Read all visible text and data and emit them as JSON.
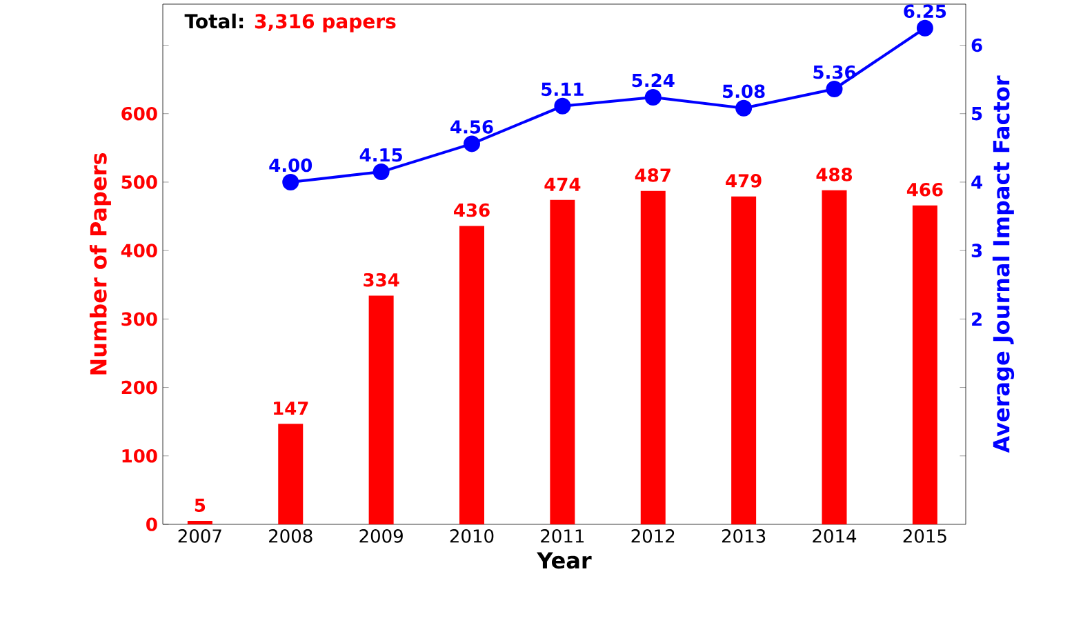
{
  "chart_data": {
    "type": "bar",
    "xlabel": "Year",
    "ylabel": "Number of Papers",
    "y2label": "Average Journal Impact Factor",
    "annotations": [
      "Total:",
      "3,316 papers"
    ],
    "categories": [
      "2007",
      "2008",
      "2009",
      "2010",
      "2011",
      "2012",
      "2013",
      "2014",
      "2015"
    ],
    "series": [
      {
        "color": "#ff0000",
        "values": [
          5,
          147,
          334,
          436,
          474,
          487,
          479,
          488,
          466
        ],
        "value_labels": [
          "5",
          "147",
          "334",
          "436",
          "474",
          "487",
          "479",
          "488",
          "466"
        ]
      },
      {
        "type": "line",
        "axis": "y2",
        "color": "#0000ff",
        "marker": "circle",
        "values": [
          null,
          4.0,
          4.15,
          4.56,
          5.11,
          5.24,
          5.08,
          5.36,
          6.25
        ],
        "value_labels": [
          null,
          "4.00",
          "4.15",
          "4.56",
          "5.11",
          "5.24",
          "5.08",
          "5.36",
          "6.25"
        ]
      }
    ],
    "ylim": [
      0,
      760
    ],
    "yticks": [
      0,
      100,
      200,
      300,
      400,
      500,
      600,
      {
        "value": 700,
        "label": null
      }
    ],
    "y2lim": [
      -1,
      6.6
    ],
    "y2ticks": [
      {
        "value": 0,
        "label": null
      },
      {
        "value": 1,
        "label": null
      },
      2,
      3,
      4,
      5,
      6
    ],
    "grid": false
  }
}
